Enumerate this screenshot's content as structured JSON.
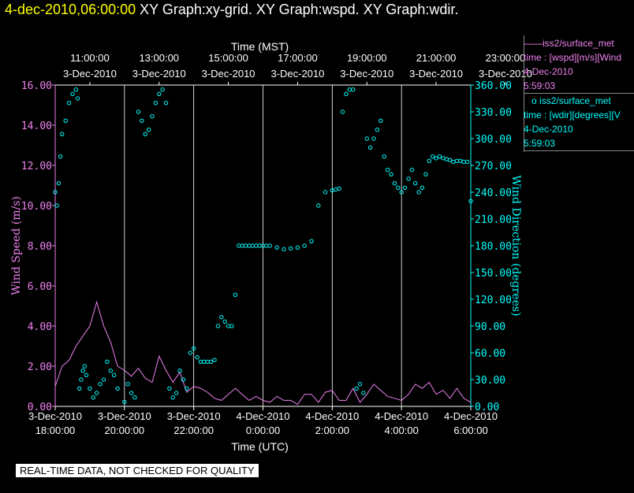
{
  "header": {
    "datetime": "4-dec-2010,06:00:00",
    "graphs": "XY Graph:xy-grid.  XY Graph:wspd.  XY Graph:wdir."
  },
  "legend": {
    "series1": {
      "name": "iss2/surface_met",
      "prefix": "——",
      "var": "time : [wspd][m/s][Wind",
      "date": "4-Dec-2010",
      "time": "5:59:03",
      "color": "#ee82ee"
    },
    "series2": {
      "name": "iss2/surface_met",
      "prefix": "o",
      "var": "time : [wdir][degrees][V",
      "date": "4-Dec-2010",
      "time": "5:59:03",
      "color": "#00ffff"
    }
  },
  "banner": "REAL-TIME DATA, NOT CHECKED FOR QUALITY",
  "chart_data": {
    "type": "line",
    "top_axis": {
      "label": "Time (MST)",
      "ticks": [
        {
          "time": "11:00:00",
          "date": "3-Dec-2010"
        },
        {
          "time": "13:00:00",
          "date": "3-Dec-2010"
        },
        {
          "time": "15:00:00",
          "date": "3-Dec-2010"
        },
        {
          "time": "17:00:00",
          "date": "3-Dec-2010"
        },
        {
          "time": "19:00:00",
          "date": "3-Dec-2010"
        },
        {
          "time": "21:00:00",
          "date": "3-Dec-2010"
        },
        {
          "time": "23:00:00",
          "date": "3-Dec-2010"
        }
      ]
    },
    "bottom_axis": {
      "label": "Time (UTC)",
      "ticks": [
        {
          "date": "3-Dec-2010",
          "time": "18:00:00"
        },
        {
          "date": "3-Dec-2010",
          "time": "20:00:00"
        },
        {
          "date": "3-Dec-2010",
          "time": "22:00:00"
        },
        {
          "date": "4-Dec-2010",
          "time": "0:00:00"
        },
        {
          "date": "4-Dec-2010",
          "time": "2:00:00"
        },
        {
          "date": "4-Dec-2010",
          "time": "4:00:00"
        },
        {
          "date": "4-Dec-2010",
          "time": "6:00:00"
        }
      ],
      "range_hours_utc": [
        18,
        30
      ]
    },
    "left_axis": {
      "label": "Wind Speed (m/s)",
      "range": [
        0,
        16
      ],
      "ticks": [
        "0.00",
        "2.00",
        "4.00",
        "6.00",
        "8.00",
        "10.00",
        "12.00",
        "14.00",
        "16.00"
      ],
      "color": "#ee82ee"
    },
    "right_axis": {
      "label": "Wind Direction (degrees)",
      "range": [
        0,
        360
      ],
      "ticks": [
        "0.00",
        "30.00",
        "60.00",
        "90.00",
        "120.00",
        "150.00",
        "180.00",
        "210.00",
        "240.00",
        "270.00",
        "300.00",
        "330.00",
        "360.00"
      ],
      "color": "#00ffff"
    },
    "grid": "vertical lines at tick times",
    "series": [
      {
        "name": "iss2/surface_met wspd",
        "style": "line",
        "color": "#ee82ee",
        "x_hours_utc": [
          18.0,
          18.2,
          18.4,
          18.6,
          18.8,
          19.0,
          19.2,
          19.4,
          19.6,
          19.8,
          20.0,
          20.2,
          20.4,
          20.6,
          20.8,
          21.0,
          21.2,
          21.4,
          21.6,
          21.8,
          22.0,
          22.2,
          22.4,
          22.6,
          22.8,
          23.0,
          23.2,
          23.4,
          23.6,
          23.8,
          24.0,
          24.2,
          24.4,
          24.6,
          24.8,
          25.0,
          25.2,
          25.4,
          25.6,
          25.8,
          26.0,
          26.2,
          26.4,
          26.6,
          26.8,
          27.0,
          27.2,
          27.4,
          27.6,
          27.8,
          28.0,
          28.2,
          28.4,
          28.6,
          28.8,
          29.0,
          29.2,
          29.4,
          29.6,
          29.8,
          30.0
        ],
        "values": [
          1.0,
          2.0,
          2.3,
          3.0,
          3.5,
          4.0,
          5.2,
          4.0,
          3.2,
          2.0,
          1.8,
          1.5,
          1.9,
          1.4,
          1.2,
          2.5,
          1.8,
          1.2,
          1.7,
          0.7,
          1.0,
          0.9,
          0.7,
          0.4,
          0.3,
          0.6,
          0.9,
          0.6,
          0.3,
          0.5,
          0.3,
          0.2,
          0.5,
          0.3,
          0.3,
          0.1,
          0.6,
          0.6,
          0.2,
          0.7,
          0.8,
          0.3,
          0.3,
          0.9,
          0.2,
          0.6,
          1.1,
          0.8,
          0.5,
          0.4,
          0.3,
          0.6,
          1.1,
          0.9,
          1.2,
          0.6,
          0.8,
          0.4,
          0.9,
          0.4,
          0.2
        ]
      },
      {
        "name": "iss2/surface_met wdir",
        "style": "scatter",
        "color": "#00ffff",
        "x_hours_utc": [
          18.0,
          18.05,
          18.1,
          18.15,
          18.2,
          18.3,
          18.4,
          18.5,
          18.6,
          18.65,
          18.7,
          18.75,
          18.8,
          18.85,
          18.9,
          19.0,
          19.1,
          19.2,
          19.3,
          19.4,
          19.5,
          19.6,
          19.7,
          19.8,
          20.0,
          20.1,
          20.2,
          20.3,
          20.4,
          20.5,
          20.6,
          20.7,
          20.8,
          20.9,
          21.0,
          21.1,
          21.2,
          21.3,
          21.4,
          21.5,
          21.6,
          21.7,
          21.8,
          21.9,
          22.0,
          22.1,
          22.2,
          22.3,
          22.4,
          22.5,
          22.6,
          22.7,
          22.8,
          22.9,
          23.0,
          23.1,
          23.2,
          23.3,
          23.4,
          23.5,
          23.6,
          23.7,
          23.8,
          23.9,
          24.0,
          24.1,
          24.2,
          24.4,
          24.6,
          24.8,
          25.0,
          25.2,
          25.4,
          25.6,
          25.8,
          26.0,
          26.1,
          26.2,
          26.3,
          26.4,
          26.5,
          26.6,
          26.7,
          26.8,
          26.9,
          27.0,
          27.1,
          27.2,
          27.3,
          27.4,
          27.5,
          27.6,
          27.7,
          27.8,
          27.9,
          28.0,
          28.1,
          28.2,
          28.3,
          28.4,
          28.5,
          28.6,
          28.7,
          28.8,
          28.9,
          29.0,
          29.1,
          29.2,
          29.3,
          29.4,
          29.5,
          29.6,
          29.7,
          29.8,
          29.9,
          30.0
        ],
        "values": [
          240,
          225,
          250,
          280,
          305,
          320,
          340,
          350,
          355,
          345,
          20,
          30,
          40,
          45,
          35,
          20,
          10,
          15,
          25,
          30,
          50,
          40,
          35,
          20,
          5,
          25,
          15,
          10,
          330,
          320,
          305,
          310,
          325,
          340,
          350,
          355,
          340,
          20,
          10,
          15,
          40,
          30,
          20,
          60,
          65,
          55,
          50,
          50,
          50,
          50,
          52,
          90,
          100,
          95,
          90,
          90,
          125,
          180,
          180,
          180,
          180,
          180,
          180,
          180,
          180,
          180,
          180,
          178,
          176,
          177,
          178,
          180,
          185,
          225,
          240,
          242,
          243,
          244,
          330,
          350,
          355,
          355,
          20,
          25,
          15,
          300,
          290,
          300,
          310,
          320,
          280,
          265,
          260,
          250,
          245,
          240,
          245,
          255,
          265,
          250,
          240,
          245,
          260,
          275,
          280,
          278,
          280,
          278,
          277,
          276,
          274,
          275,
          275,
          274,
          274,
          230
        ]
      }
    ]
  }
}
